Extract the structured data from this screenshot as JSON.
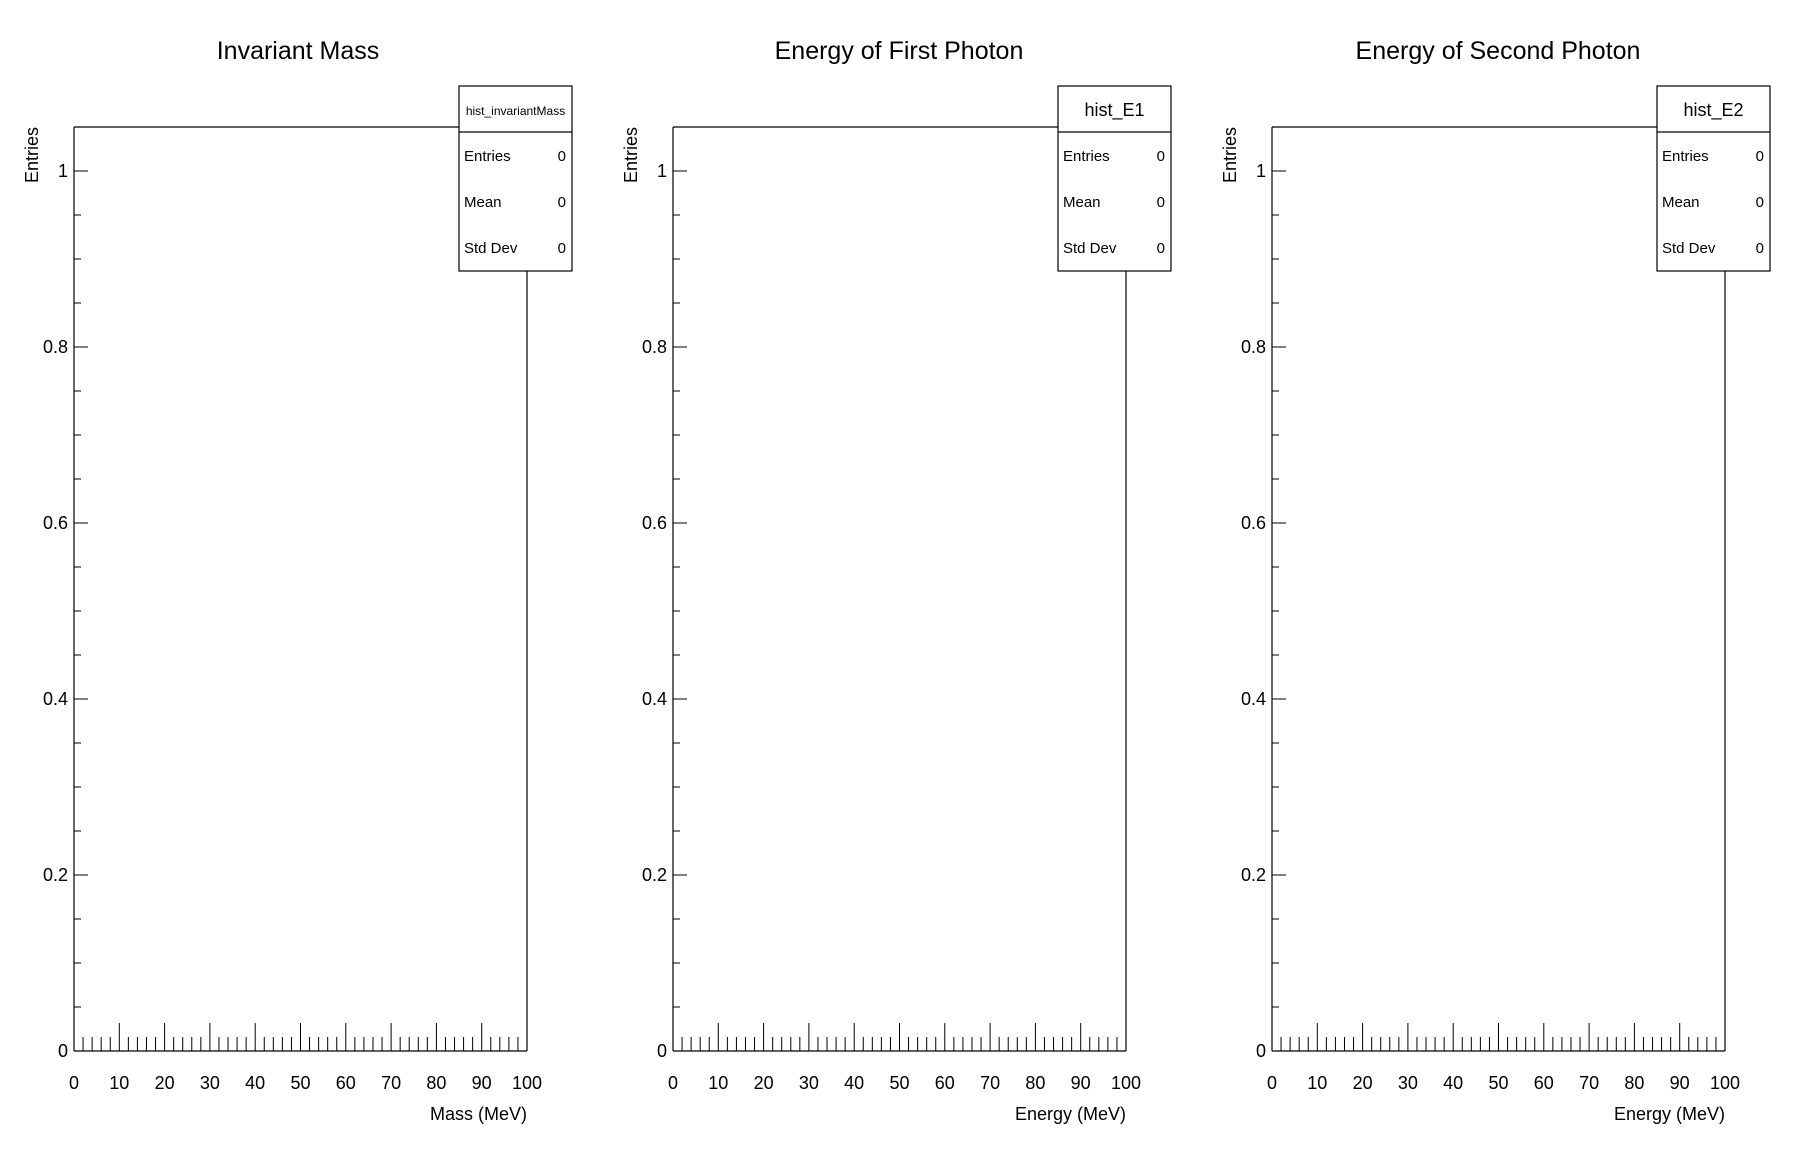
{
  "chart_data": [
    {
      "type": "bar",
      "title": "Invariant Mass",
      "xlabel": "Mass (MeV)",
      "ylabel": "Entries",
      "xlim": [
        0,
        100
      ],
      "ylim": [
        0,
        1.05
      ],
      "x_ticks": [
        "0",
        "10",
        "20",
        "30",
        "40",
        "50",
        "60",
        "70",
        "80",
        "90",
        "100"
      ],
      "y_ticks": [
        "0",
        "0.2",
        "0.4",
        "0.6",
        "0.8",
        "1"
      ],
      "series": [],
      "grid": false,
      "stats_box": {
        "name": "hist_invariantMass",
        "rows": [
          {
            "label": "Entries",
            "value": "0"
          },
          {
            "label": "Mean",
            "value": "0"
          },
          {
            "label": "Std Dev",
            "value": "0"
          }
        ]
      }
    },
    {
      "type": "bar",
      "title": "Energy of First Photon",
      "xlabel": "Energy (MeV)",
      "ylabel": "Entries",
      "xlim": [
        0,
        100
      ],
      "ylim": [
        0,
        1.05
      ],
      "x_ticks": [
        "0",
        "10",
        "20",
        "30",
        "40",
        "50",
        "60",
        "70",
        "80",
        "90",
        "100"
      ],
      "y_ticks": [
        "0",
        "0.2",
        "0.4",
        "0.6",
        "0.8",
        "1"
      ],
      "series": [],
      "grid": false,
      "stats_box": {
        "name": "hist_E1",
        "rows": [
          {
            "label": "Entries",
            "value": "0"
          },
          {
            "label": "Mean",
            "value": "0"
          },
          {
            "label": "Std Dev",
            "value": "0"
          }
        ]
      }
    },
    {
      "type": "bar",
      "title": "Energy of Second Photon",
      "xlabel": "Energy (MeV)",
      "ylabel": "Entries",
      "xlim": [
        0,
        100
      ],
      "ylim": [
        0,
        1.05
      ],
      "x_ticks": [
        "0",
        "10",
        "20",
        "30",
        "40",
        "50",
        "60",
        "70",
        "80",
        "90",
        "100"
      ],
      "y_ticks": [
        "0",
        "0.2",
        "0.4",
        "0.6",
        "0.8",
        "1"
      ],
      "series": [],
      "grid": false,
      "stats_box": {
        "name": "hist_E2",
        "rows": [
          {
            "label": "Entries",
            "value": "0"
          },
          {
            "label": "Mean",
            "value": "0"
          },
          {
            "label": "Std Dev",
            "value": "0"
          }
        ]
      }
    }
  ]
}
